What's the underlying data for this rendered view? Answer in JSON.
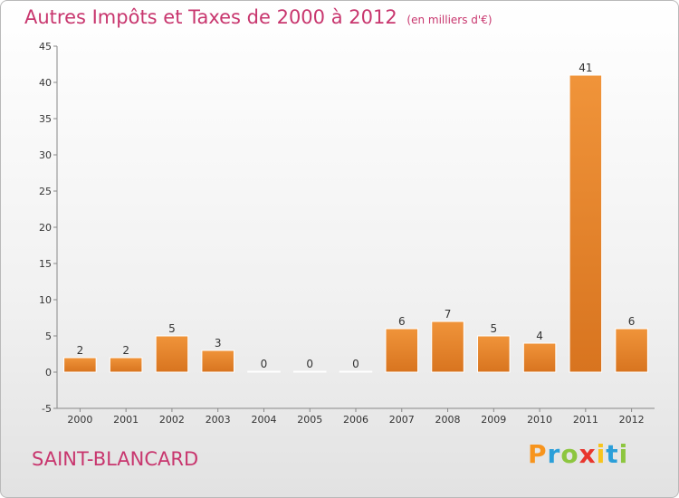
{
  "title": "Autres Impôts et Taxes de 2000 à 2012",
  "subtitle": "(en milliers d'€)",
  "commune": "SAINT-BLANCARD",
  "logo": {
    "letters": [
      "P",
      "r",
      "o",
      "x",
      "i",
      "t",
      "i"
    ],
    "colors": [
      "#f7941d",
      "#2b9fd9",
      "#8dc63f",
      "#e8362d",
      "#f7c41d",
      "#2b9fd9",
      "#8dc63f"
    ]
  },
  "chart_data": {
    "type": "bar",
    "categories": [
      "2000",
      "2001",
      "2002",
      "2003",
      "2004",
      "2005",
      "2006",
      "2007",
      "2008",
      "2009",
      "2010",
      "2011",
      "2012"
    ],
    "values": [
      2,
      2,
      5,
      3,
      0,
      0,
      0,
      6,
      7,
      5,
      4,
      41,
      6
    ],
    "data_labels": [
      "2",
      "2",
      "5",
      "3",
      "0",
      "0",
      "0",
      "6",
      "7",
      "5",
      "4",
      "41",
      "6"
    ],
    "y_ticks": [
      "-5",
      "0",
      "5",
      "10",
      "15",
      "20",
      "25",
      "30",
      "35",
      "40",
      "45"
    ],
    "ylim": [
      -5,
      45
    ],
    "bar_color": "#f0943a",
    "bar_color_dark": "#d8741f",
    "grid": false
  }
}
